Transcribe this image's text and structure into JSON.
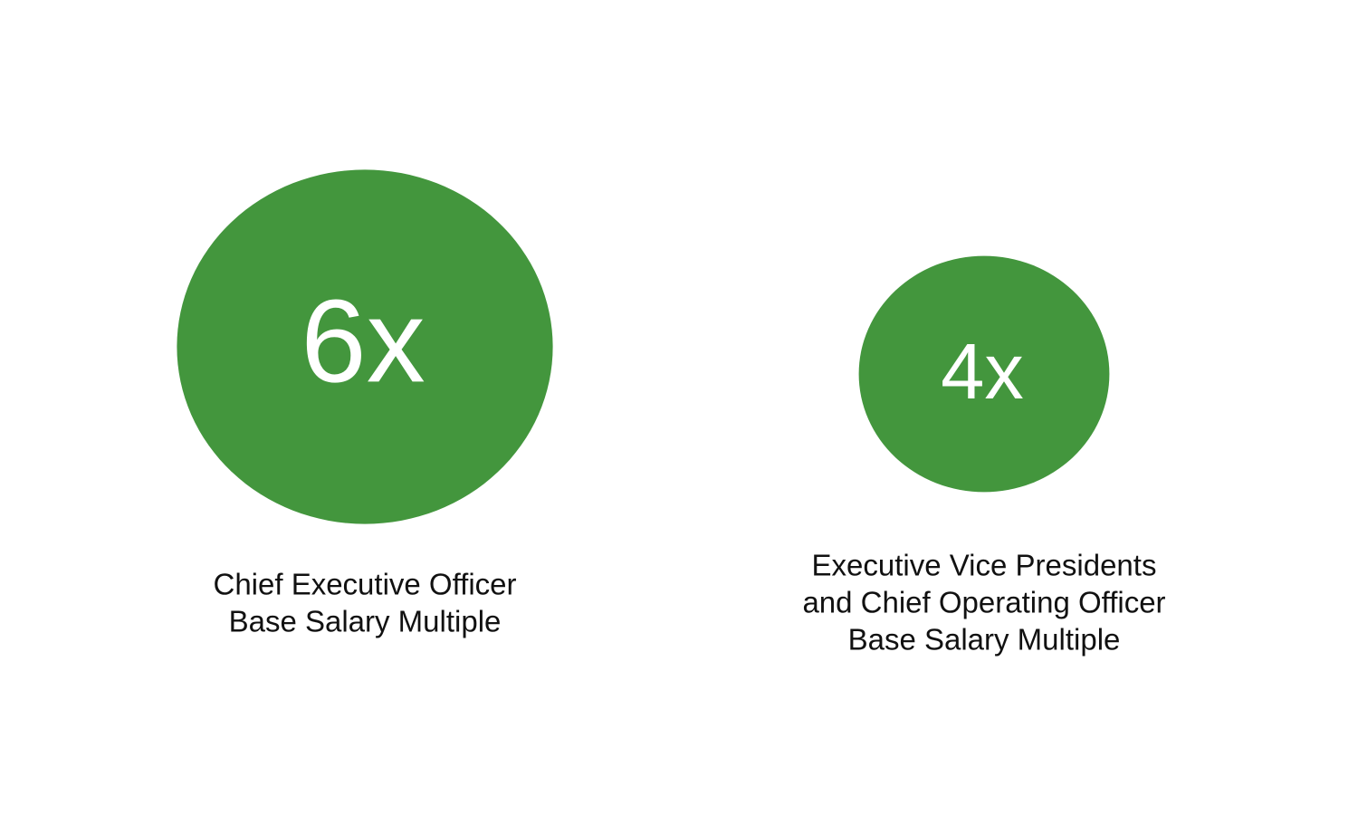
{
  "chart_data": {
    "type": "bubble",
    "color": "#43963d",
    "values": [
      6,
      4
    ],
    "value_labels": [
      "6x",
      "4x"
    ],
    "categories": [
      [
        "Chief Executive Officer",
        "Base Salary Multiple"
      ],
      [
        "Executive Vice Presidents",
        "and Chief Operating Officer",
        "Base Salary Multiple"
      ]
    ]
  }
}
